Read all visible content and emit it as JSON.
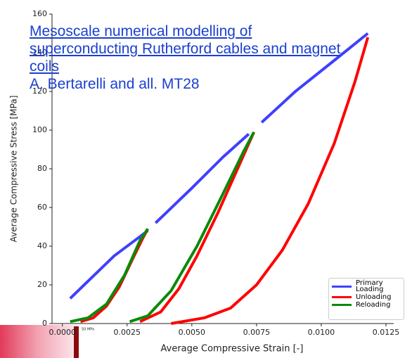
{
  "chart_data": {
    "type": "line",
    "x_label": "Average Compressive Strain [-]",
    "y_label": "Average Compressive Stress [MPa]",
    "xlim": [
      -0.0004,
      0.0128
    ],
    "xticks": [
      {
        "value": 0,
        "label": "0.0000"
      },
      0.0025,
      {
        "value": 0.005,
        "label": "0.0050"
      },
      0.0075,
      {
        "value": 0.01,
        "label": "0.0100"
      },
      0.0125
    ],
    "ylim": [
      0,
      160
    ],
    "yticks": [
      0,
      20,
      40,
      60,
      80,
      100,
      120,
      140,
      160
    ],
    "series": [
      {
        "name": "Primary Loading",
        "color": "#4040ff",
        "x": [
          0.0003,
          0.001,
          0.002,
          0.003,
          0.0033,
          null,
          0.0036,
          0.005,
          0.0062,
          0.0072,
          null,
          0.0077,
          0.009,
          0.0105,
          0.0118
        ],
        "values": [
          13,
          22,
          35,
          45,
          48,
          null,
          52,
          70,
          86,
          98,
          null,
          104,
          120,
          136,
          150
        ]
      },
      {
        "name": "Unloading",
        "color": "#ff0000",
        "x": [
          0.0007,
          0.0012,
          0.0017,
          0.0022,
          0.0027,
          0.0031,
          0.0033,
          null,
          0.003,
          0.0038,
          0.0045,
          0.0052,
          0.006,
          0.0067,
          0.0072,
          0.0074,
          null,
          0.0042,
          0.0055,
          0.0065,
          0.0075,
          0.0085,
          0.0095,
          0.0105,
          0.0113,
          0.0118
        ],
        "values": [
          1,
          3,
          9,
          19,
          33,
          44,
          49,
          null,
          1,
          6,
          18,
          35,
          57,
          78,
          93,
          99,
          null,
          0,
          3,
          8,
          20,
          38,
          62,
          93,
          125,
          148
        ]
      },
      {
        "name": "Reloading",
        "color": "#0a8a0a",
        "x": [
          0.0003,
          0.001,
          0.0017,
          0.0024,
          0.003,
          0.0033,
          null,
          0.0026,
          0.0033,
          0.0042,
          0.0052,
          0.0062,
          0.007,
          0.0074
        ],
        "values": [
          1,
          3,
          10,
          25,
          43,
          49,
          null,
          1,
          4,
          17,
          40,
          67,
          89,
          99
        ]
      }
    ]
  },
  "overlay": {
    "link": "Mesoscale numerical modelling of superconducting Rutherford cables and magnet coils",
    "author": "A. Bertarelli and all. MT28",
    "inset_label": "50 MPa"
  }
}
